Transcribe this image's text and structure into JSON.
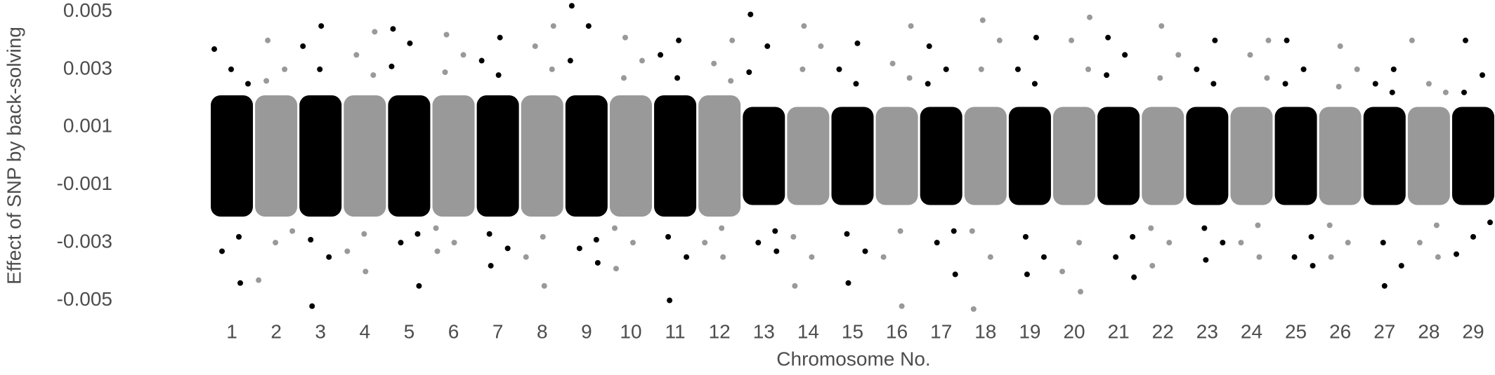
{
  "chart_data": {
    "type": "scatter",
    "xlabel": "Chromosome No.",
    "ylabel": "Effect of SNP by back-solving",
    "ylim": [
      -0.0054,
      0.0054
    ],
    "yticks": [
      0.005,
      0.003,
      0.001,
      -0.001,
      -0.003,
      -0.005
    ],
    "categories": [
      "1",
      "2",
      "3",
      "4",
      "5",
      "6",
      "7",
      "8",
      "9",
      "10",
      "11",
      "12",
      "13",
      "14",
      "15",
      "16",
      "17",
      "18",
      "19",
      "20",
      "21",
      "22",
      "23",
      "24",
      "25",
      "26",
      "27",
      "28",
      "29"
    ],
    "colors": [
      "#000000",
      "#999999",
      "#000000",
      "#999999",
      "#000000",
      "#999999",
      "#000000",
      "#999999",
      "#000000",
      "#999999",
      "#000000",
      "#999999",
      "#000000",
      "#999999",
      "#000000",
      "#999999",
      "#000000",
      "#999999",
      "#000000",
      "#999999",
      "#000000",
      "#999999",
      "#000000",
      "#999999",
      "#000000",
      "#999999",
      "#000000",
      "#999999",
      "#000000"
    ],
    "core_range": [
      [
        -0.0021,
        0.0021
      ],
      [
        -0.0021,
        0.0021
      ],
      [
        -0.0021,
        0.0021
      ],
      [
        -0.0021,
        0.0021
      ],
      [
        -0.0021,
        0.0021
      ],
      [
        -0.0021,
        0.0021
      ],
      [
        -0.0021,
        0.0021
      ],
      [
        -0.0021,
        0.0021
      ],
      [
        -0.0021,
        0.0021
      ],
      [
        -0.0021,
        0.0021
      ],
      [
        -0.0021,
        0.0021
      ],
      [
        -0.0021,
        0.0021
      ],
      [
        -0.0017,
        0.0017
      ],
      [
        -0.0017,
        0.0017
      ],
      [
        -0.0017,
        0.0017
      ],
      [
        -0.0017,
        0.0017
      ],
      [
        -0.0017,
        0.0017
      ],
      [
        -0.0017,
        0.0017
      ],
      [
        -0.0017,
        0.0017
      ],
      [
        -0.0017,
        0.0017
      ],
      [
        -0.0017,
        0.0017
      ],
      [
        -0.0017,
        0.0017
      ],
      [
        -0.0017,
        0.0017
      ],
      [
        -0.0017,
        0.0017
      ],
      [
        -0.0017,
        0.0017
      ],
      [
        -0.0017,
        0.0017
      ],
      [
        -0.0017,
        0.0017
      ],
      [
        -0.0017,
        0.0017
      ],
      [
        -0.0017,
        0.0017
      ]
    ],
    "values": [
      [
        0.0037,
        -0.0044,
        0.003,
        -0.0033,
        0.0025,
        -0.0028
      ],
      [
        0.004,
        -0.0043,
        0.003,
        -0.003,
        0.0026,
        -0.0026
      ],
      [
        0.0045,
        -0.0052,
        0.0038,
        -0.0035,
        0.003,
        -0.0029
      ],
      [
        0.0043,
        -0.004,
        0.0035,
        -0.0033,
        0.0028,
        -0.0027
      ],
      [
        0.0044,
        -0.0045,
        0.0039,
        -0.003,
        0.0031,
        -0.0027
      ],
      [
        0.0042,
        -0.0033,
        0.0035,
        -0.003,
        0.0029,
        -0.0025
      ],
      [
        0.0041,
        -0.0038,
        0.0033,
        -0.0032,
        0.0028,
        -0.0027
      ],
      [
        0.0045,
        -0.0045,
        0.0038,
        -0.0035,
        0.003,
        -0.0028
      ],
      [
        0.0052,
        -0.0037,
        0.0045,
        -0.0032,
        0.0033,
        -0.0029
      ],
      [
        0.0041,
        -0.0039,
        0.0033,
        -0.003,
        0.0027,
        -0.0025
      ],
      [
        0.004,
        -0.005,
        0.0035,
        -0.0035,
        0.0027,
        -0.0028
      ],
      [
        0.004,
        -0.0035,
        0.0032,
        -0.003,
        0.0026,
        -0.0025
      ],
      [
        0.0049,
        -0.0033,
        0.0038,
        -0.003,
        0.0029,
        -0.0026
      ],
      [
        0.0045,
        -0.0045,
        0.0038,
        -0.0035,
        0.003,
        -0.0028
      ],
      [
        0.0039,
        -0.0044,
        0.003,
        -0.0033,
        0.0025,
        -0.0027
      ],
      [
        0.0045,
        -0.0052,
        0.0032,
        -0.0035,
        0.0027,
        -0.0026
      ],
      [
        0.0038,
        -0.0041,
        0.003,
        -0.003,
        0.0025,
        -0.0026
      ],
      [
        0.0047,
        -0.0053,
        0.004,
        -0.0035,
        0.003,
        -0.0026
      ],
      [
        0.0041,
        -0.0041,
        0.003,
        -0.0035,
        0.0025,
        -0.0028
      ],
      [
        0.0048,
        -0.0047,
        0.004,
        -0.004,
        0.003,
        -0.003
      ],
      [
        0.0041,
        -0.0042,
        0.0035,
        -0.0035,
        0.0028,
        -0.0028
      ],
      [
        0.0045,
        -0.0038,
        0.0035,
        -0.003,
        0.0027,
        -0.0025
      ],
      [
        0.004,
        -0.0036,
        0.003,
        -0.003,
        0.0025,
        -0.0025
      ],
      [
        0.004,
        -0.0035,
        0.0035,
        -0.003,
        0.0027,
        -0.0024
      ],
      [
        0.004,
        -0.0038,
        0.003,
        -0.0035,
        0.0025,
        -0.0028
      ],
      [
        0.0038,
        -0.0035,
        0.003,
        -0.003,
        0.0024,
        -0.0024
      ],
      [
        0.003,
        -0.0045,
        0.0025,
        -0.0038,
        0.0022,
        -0.003
      ],
      [
        0.004,
        -0.0035,
        0.0025,
        -0.003,
        0.0022,
        -0.0024
      ],
      [
        0.004,
        -0.0034,
        0.0028,
        -0.0028,
        0.0022,
        -0.0023
      ]
    ]
  }
}
